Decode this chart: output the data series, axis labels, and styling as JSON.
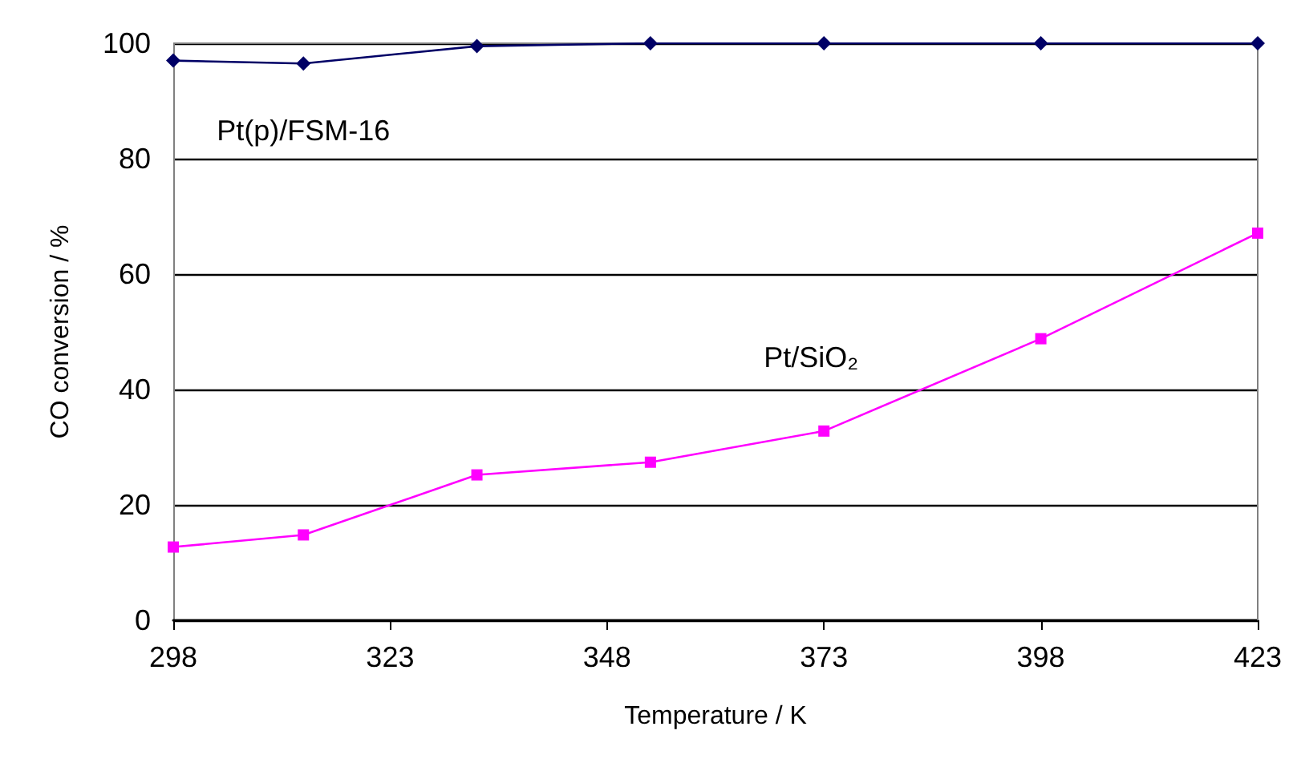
{
  "chart_data": {
    "type": "line",
    "xlabel": "Temperature / K",
    "ylabel": "CO conversion / %",
    "x": [
      298,
      313,
      333,
      353,
      373,
      398,
      423
    ],
    "series": [
      {
        "name": "Pt(p)/FSM-16",
        "color": "#000066",
        "marker": "diamond",
        "values": [
          97,
          96.5,
          99.5,
          100,
          100,
          100,
          100
        ]
      },
      {
        "name": "Pt/SiO₂",
        "color": "#ff00ff",
        "marker": "square",
        "values": [
          12.7,
          14.8,
          25.2,
          27.4,
          32.8,
          48.8,
          67.1
        ]
      }
    ],
    "xlim": [
      298,
      423
    ],
    "xticks": [
      298,
      323,
      348,
      373,
      398,
      423
    ],
    "ylim": [
      0,
      100
    ],
    "yticks": [
      0,
      20,
      40,
      60,
      80,
      100
    ],
    "grid": "y",
    "legend": false
  }
}
